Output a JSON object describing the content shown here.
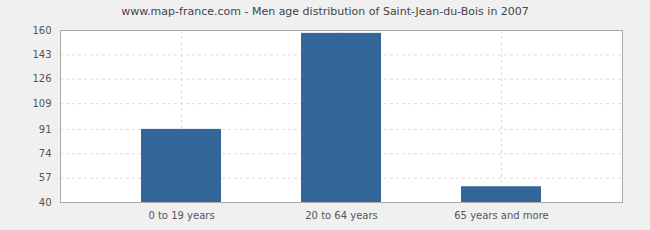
{
  "chart_data": {
    "type": "bar",
    "title": "www.map-france.com - Men age distribution of Saint-Jean-du-Bois in 2007",
    "categories": [
      "0 to 19 years",
      "20 to 64 years",
      "65 years and more"
    ],
    "values": [
      91,
      158,
      51
    ],
    "color": "#336699",
    "ylim": [
      40,
      160
    ],
    "yticks": [
      40,
      57,
      74,
      91,
      109,
      126,
      143,
      160
    ],
    "grid": true
  }
}
